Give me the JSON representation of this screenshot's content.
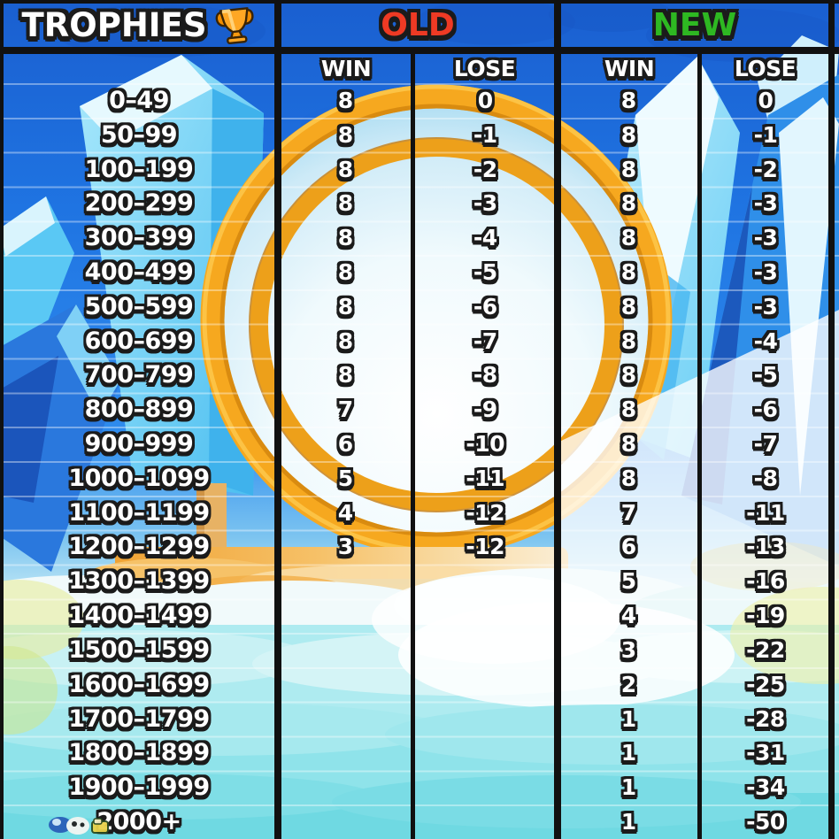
{
  "header": {
    "trophies_label": "TROPHIES",
    "trophy_icon": "trophy",
    "old_label": "OLD",
    "new_label": "NEW",
    "win_label": "WIN",
    "lose_label": "LOSE"
  },
  "colors": {
    "old_label_color": "#ee3a24",
    "new_label_color": "#2eb822",
    "text_color": "#ffffff",
    "outline_color": "#1b1b1b",
    "grid_color": "#111111",
    "gold_ring": "#f6a81f",
    "sky_blue": "#2f8cee",
    "crystal_cyan": "#5ac8f4",
    "water_teal": "#7edde6"
  },
  "table": {
    "columns": [
      "TROPHIES",
      "OLD WIN",
      "OLD LOSE",
      "NEW WIN",
      "NEW LOSE"
    ],
    "rows": [
      {
        "range": "0–49",
        "old_win": "8",
        "old_lose": "0",
        "new_win": "8",
        "new_lose": "0"
      },
      {
        "range": "50–99",
        "old_win": "8",
        "old_lose": "-1",
        "new_win": "8",
        "new_lose": "-1"
      },
      {
        "range": "100–199",
        "old_win": "8",
        "old_lose": "-2",
        "new_win": "8",
        "new_lose": "-2"
      },
      {
        "range": "200–299",
        "old_win": "8",
        "old_lose": "-3",
        "new_win": "8",
        "new_lose": "-3"
      },
      {
        "range": "300–399",
        "old_win": "8",
        "old_lose": "-4",
        "new_win": "8",
        "new_lose": "-3"
      },
      {
        "range": "400–499",
        "old_win": "8",
        "old_lose": "-5",
        "new_win": "8",
        "new_lose": "-3"
      },
      {
        "range": "500–599",
        "old_win": "8",
        "old_lose": "-6",
        "new_win": "8",
        "new_lose": "-3"
      },
      {
        "range": "600–699",
        "old_win": "8",
        "old_lose": "-7",
        "new_win": "8",
        "new_lose": "-4"
      },
      {
        "range": "700–799",
        "old_win": "8",
        "old_lose": "-8",
        "new_win": "8",
        "new_lose": "-5"
      },
      {
        "range": "800–899",
        "old_win": "7",
        "old_lose": "-9",
        "new_win": "8",
        "new_lose": "-6"
      },
      {
        "range": "900–999",
        "old_win": "6",
        "old_lose": "-10",
        "new_win": "8",
        "new_lose": "-7"
      },
      {
        "range": "1000–1099",
        "old_win": "5",
        "old_lose": "-11",
        "new_win": "8",
        "new_lose": "-8"
      },
      {
        "range": "1100–1199",
        "old_win": "4",
        "old_lose": "-12",
        "new_win": "7",
        "new_lose": "-11"
      },
      {
        "range": "1200–1299",
        "old_win": "3",
        "old_lose": "-12",
        "new_win": "6",
        "new_lose": "-13"
      },
      {
        "range": "1300–1399",
        "old_win": "",
        "old_lose": "",
        "new_win": "5",
        "new_lose": "-16"
      },
      {
        "range": "1400–1499",
        "old_win": "",
        "old_lose": "",
        "new_win": "4",
        "new_lose": "-19"
      },
      {
        "range": "1500–1599",
        "old_win": "",
        "old_lose": "",
        "new_win": "3",
        "new_lose": "-22"
      },
      {
        "range": "1600–1699",
        "old_win": "",
        "old_lose": "",
        "new_win": "2",
        "new_lose": "-25"
      },
      {
        "range": "1700–1799",
        "old_win": "",
        "old_lose": "",
        "new_win": "1",
        "new_lose": "-28"
      },
      {
        "range": "1800–1899",
        "old_win": "",
        "old_lose": "",
        "new_win": "1",
        "new_lose": "-31"
      },
      {
        "range": "1900–1999",
        "old_win": "",
        "old_lose": "",
        "new_win": "1",
        "new_lose": "-34"
      },
      {
        "range": "2000+",
        "old_win": "",
        "old_lose": "",
        "new_win": "1",
        "new_lose": "-50"
      }
    ]
  }
}
